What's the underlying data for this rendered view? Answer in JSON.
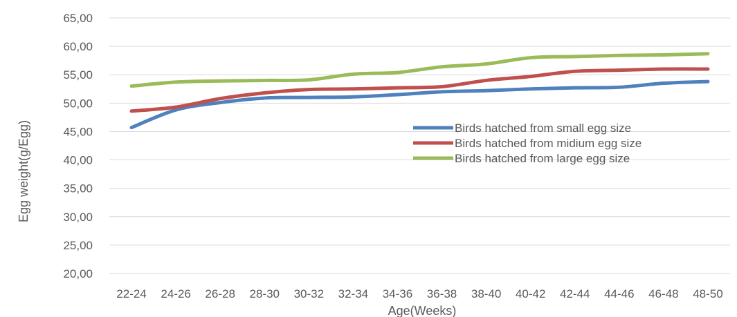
{
  "chart_data": {
    "type": "line",
    "title": "",
    "xlabel": "Age(Weeks)",
    "ylabel": "Egg weight(g/Egg)",
    "ylim": [
      20,
      65
    ],
    "y_ticks": [
      "20,00",
      "25,00",
      "30,00",
      "35,00",
      "40,00",
      "45,00",
      "50,00",
      "55,00",
      "60,00",
      "65,00"
    ],
    "grid": true,
    "legend_position": "right",
    "categories": [
      "22-24",
      "24-26",
      "26-28",
      "28-30",
      "30-32",
      "32-34",
      "34-36",
      "36-38",
      "38-40",
      "40-42",
      "42-44",
      "44-46",
      "46-48",
      "48-50"
    ],
    "series": [
      {
        "name": "Birds hatched from small egg size",
        "color": "#4f81bd",
        "values": [
          45.7,
          48.8,
          50.1,
          50.9,
          51.0,
          51.1,
          51.5,
          52.0,
          52.2,
          52.5,
          52.7,
          52.8,
          53.5,
          53.8
        ]
      },
      {
        "name": "Birds hatched from midium egg size",
        "color": "#c0504d",
        "values": [
          48.6,
          49.3,
          50.8,
          51.8,
          52.4,
          52.5,
          52.7,
          52.9,
          54.0,
          54.7,
          55.6,
          55.8,
          56.0,
          56.0
        ]
      },
      {
        "name": "Birds hatched from large egg size",
        "color": "#9bbb59",
        "values": [
          53.0,
          53.7,
          53.9,
          54.0,
          54.1,
          55.1,
          55.4,
          56.4,
          56.9,
          58.0,
          58.2,
          58.4,
          58.5,
          58.7
        ]
      }
    ]
  }
}
